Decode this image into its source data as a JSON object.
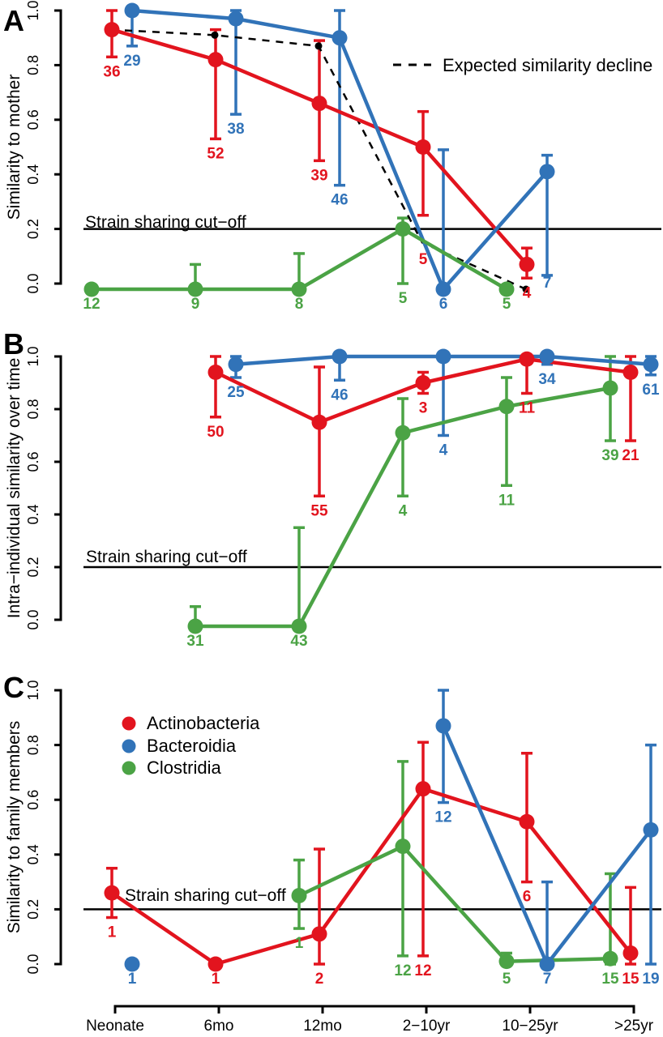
{
  "figure": {
    "background": "#ffffff",
    "colors": {
      "actinobacteria": "#e2141e",
      "bacteroidia": "#3173b8",
      "clostridia": "#4ba345",
      "dashed": "#000000",
      "axis": "#000000"
    },
    "x_categories": [
      "Neonate",
      "6mo",
      "12mo",
      "2−10yr",
      "10−25yr",
      ">25yr"
    ],
    "y_tick_labels": [
      "0.0",
      "0.2",
      "0.4",
      "0.6",
      "0.8",
      "1.0"
    ]
  },
  "chart_data": [
    {
      "type": "line",
      "panel_letter": "A",
      "ylabel": "Similarity to mother",
      "ylim": [
        0,
        1
      ],
      "yticks": [
        0,
        0.2,
        0.4,
        0.6,
        0.8,
        1
      ],
      "grid": false,
      "cutoff": {
        "label": "Strain sharing cut−off",
        "value": 0.2
      },
      "legend": {
        "position": "top-right",
        "dash_label": "Expected similarity decline"
      },
      "series": [
        {
          "name": "Actinobacteria",
          "color_key": "actinobacteria",
          "points": [
            {
              "cat": "Neonate",
              "v": 0.93,
              "lo": 0.83,
              "hi": 1.0,
              "n": 36
            },
            {
              "cat": "6mo",
              "v": 0.82,
              "lo": 0.53,
              "hi": 0.93,
              "n": 52
            },
            {
              "cat": "12mo",
              "v": 0.66,
              "lo": 0.45,
              "hi": 0.89,
              "n": 39
            },
            {
              "cat": "2−10yr",
              "v": 0.5,
              "lo": 0.25,
              "hi": 0.63,
              "n": 5,
              "ldy": 36
            },
            {
              "cat": "10−25yr",
              "v": 0.07,
              "lo": 0.02,
              "hi": 0.13,
              "n": 4
            }
          ]
        },
        {
          "name": "Bacteroidia",
          "color_key": "bacteroidia",
          "points": [
            {
              "cat": "Neonate",
              "v": 1.0,
              "lo": 0.87,
              "hi": 1.0,
              "n": 29
            },
            {
              "cat": "6mo",
              "v": 0.97,
              "lo": 0.62,
              "hi": 1.0,
              "n": 38
            },
            {
              "cat": "12mo",
              "v": 0.9,
              "lo": 0.36,
              "hi": 1.0,
              "n": 46
            },
            {
              "cat": "2−10yr",
              "v": 0.0,
              "lo": 0.0,
              "hi": 0.49,
              "n": 6
            },
            {
              "cat": "10−25yr",
              "v": 0.41,
              "lo": 0.03,
              "hi": 0.47,
              "n": 7,
              "ldy": -9
            }
          ]
        },
        {
          "name": "Clostridia",
          "color_key": "clostridia",
          "points": [
            {
              "cat": "Neonate",
              "v": 0.0,
              "n": 12
            },
            {
              "cat": "6mo",
              "v": 0.0,
              "lo": 0.0,
              "hi": 0.07,
              "n": 9
            },
            {
              "cat": "12mo",
              "v": 0.0,
              "lo": 0.0,
              "hi": 0.11,
              "n": 8
            },
            {
              "cat": "2−10yr",
              "v": 0.2,
              "lo": 0.0,
              "hi": 0.24,
              "n": 5
            },
            {
              "cat": "10−25yr",
              "v": 0.0,
              "n": 5
            }
          ]
        }
      ],
      "dashed_series": {
        "name": "Expected similarity decline",
        "cats": [
          "Neonate",
          "6mo",
          "12mo",
          "2−10yr",
          "10−25yr"
        ],
        "values": [
          0.93,
          0.91,
          0.87,
          0.15,
          0.0
        ],
        "dot_markers": [
          false,
          true,
          true,
          false,
          true
        ]
      }
    },
    {
      "type": "line",
      "panel_letter": "B",
      "ylabel": "Intra−individual similarity over time",
      "ylim": [
        0,
        1
      ],
      "yticks": [
        0,
        0.2,
        0.4,
        0.6,
        0.8,
        1
      ],
      "grid": false,
      "cutoff": {
        "label": "Strain sharing cut−off",
        "value": 0.2
      },
      "series": [
        {
          "name": "Actinobacteria",
          "color_key": "actinobacteria",
          "points": [
            {
              "cat": "6mo",
              "v": 0.94,
              "lo": 0.77,
              "hi": 1.0,
              "n": 50
            },
            {
              "cat": "12mo",
              "v": 0.75,
              "lo": 0.47,
              "hi": 0.96,
              "n": 55
            },
            {
              "cat": "2−10yr",
              "v": 0.9,
              "lo": 0.86,
              "hi": 0.94,
              "n": 3
            },
            {
              "cat": "10−25yr",
              "v": 0.99,
              "lo": 0.86,
              "hi": 1.0,
              "n": 11
            },
            {
              "cat": ">25yr",
              "v": 0.94,
              "lo": 0.68,
              "hi": 1.0,
              "n": 21
            }
          ]
        },
        {
          "name": "Bacteroidia",
          "color_key": "bacteroidia",
          "points": [
            {
              "cat": "6mo",
              "v": 0.97,
              "lo": 0.92,
              "hi": 1.0,
              "n": 25
            },
            {
              "cat": "12mo",
              "v": 1.0,
              "lo": 0.91,
              "hi": 1.0,
              "n": 46
            },
            {
              "cat": "2−10yr",
              "v": 1.0,
              "lo": 0.7,
              "hi": 1.0,
              "n": 4
            },
            {
              "cat": "10−25yr",
              "v": 1.0,
              "lo": 0.97,
              "hi": 1.0,
              "n": 34
            },
            {
              "cat": ">25yr",
              "v": 0.97,
              "lo": 0.93,
              "hi": 1.0,
              "n": 61
            }
          ]
        },
        {
          "name": "Clostridia",
          "color_key": "clostridia",
          "points": [
            {
              "cat": "6mo",
              "v": 0.0,
              "lo": 0.0,
              "hi": 0.05,
              "n": 31
            },
            {
              "cat": "12mo",
              "v": 0.0,
              "lo": 0.0,
              "hi": 0.35,
              "n": 43
            },
            {
              "cat": "2−10yr",
              "v": 0.71,
              "lo": 0.47,
              "hi": 0.84,
              "n": 4
            },
            {
              "cat": "10−25yr",
              "v": 0.81,
              "lo": 0.51,
              "hi": 0.92,
              "n": 11
            },
            {
              "cat": ">25yr",
              "v": 0.88,
              "lo": 0.68,
              "hi": 1.0,
              "n": 39
            }
          ]
        }
      ]
    },
    {
      "type": "line",
      "panel_letter": "C",
      "ylabel": "Similarity to family members",
      "ylim": [
        0,
        1
      ],
      "yticks": [
        0,
        0.2,
        0.4,
        0.6,
        0.8,
        1
      ],
      "grid": false,
      "cutoff": {
        "label": "Strain sharing cut−off",
        "value": 0.2
      },
      "legend_entries": [
        {
          "label": "Actinobacteria",
          "color_key": "actinobacteria"
        },
        {
          "label": "Bacteroidia",
          "color_key": "bacteroidia"
        },
        {
          "label": "Clostridia",
          "color_key": "clostridia"
        }
      ],
      "series": [
        {
          "name": "Actinobacteria",
          "color_key": "actinobacteria",
          "points": [
            {
              "cat": "Neonate",
              "v": 0.26,
              "lo": 0.17,
              "hi": 0.35,
              "n": 1
            },
            {
              "cat": "6mo",
              "v": 0.0,
              "n": 1
            },
            {
              "cat": "12mo",
              "v": 0.11,
              "lo": 0.0,
              "hi": 0.42,
              "n": 2
            },
            {
              "cat": "2−10yr",
              "v": 0.64,
              "lo": 0.03,
              "hi": 0.81,
              "n": 12
            },
            {
              "cat": "10−25yr",
              "v": 0.52,
              "lo": 0.3,
              "hi": 0.77,
              "n": 6
            },
            {
              "cat": ">25yr",
              "v": 0.04,
              "lo": 0.0,
              "hi": 0.28,
              "n": 15
            }
          ]
        },
        {
          "name": "Bacteroidia",
          "color_key": "bacteroidia",
          "points": [
            {
              "cat": "Neonate",
              "v": 0.0,
              "n": 1,
              "isolated": true
            },
            {
              "cat": "2−10yr",
              "v": 0.87,
              "lo": 0.59,
              "hi": 1.0,
              "n": 12
            },
            {
              "cat": "10−25yr",
              "v": 0.0,
              "lo": 0.0,
              "hi": 0.3,
              "n": 7
            },
            {
              "cat": ">25yr",
              "v": 0.49,
              "lo": 0.0,
              "hi": 0.8,
              "n": 19
            }
          ]
        },
        {
          "name": "Clostridia",
          "color_key": "clostridia",
          "points": [
            {
              "cat": "12mo",
              "v": 0.25,
              "lo": 0.13,
              "hi": 0.38,
              "n": 1
            },
            {
              "cat": "2−10yr",
              "v": 0.43,
              "lo": 0.03,
              "hi": 0.74,
              "n": 12
            },
            {
              "cat": "10−25yr",
              "v": 0.01,
              "lo": 0.0,
              "hi": 0.04,
              "n": 5
            },
            {
              "cat": ">25yr",
              "v": 0.02,
              "lo": 0.0,
              "hi": 0.33,
              "n": 15
            }
          ]
        }
      ]
    }
  ]
}
